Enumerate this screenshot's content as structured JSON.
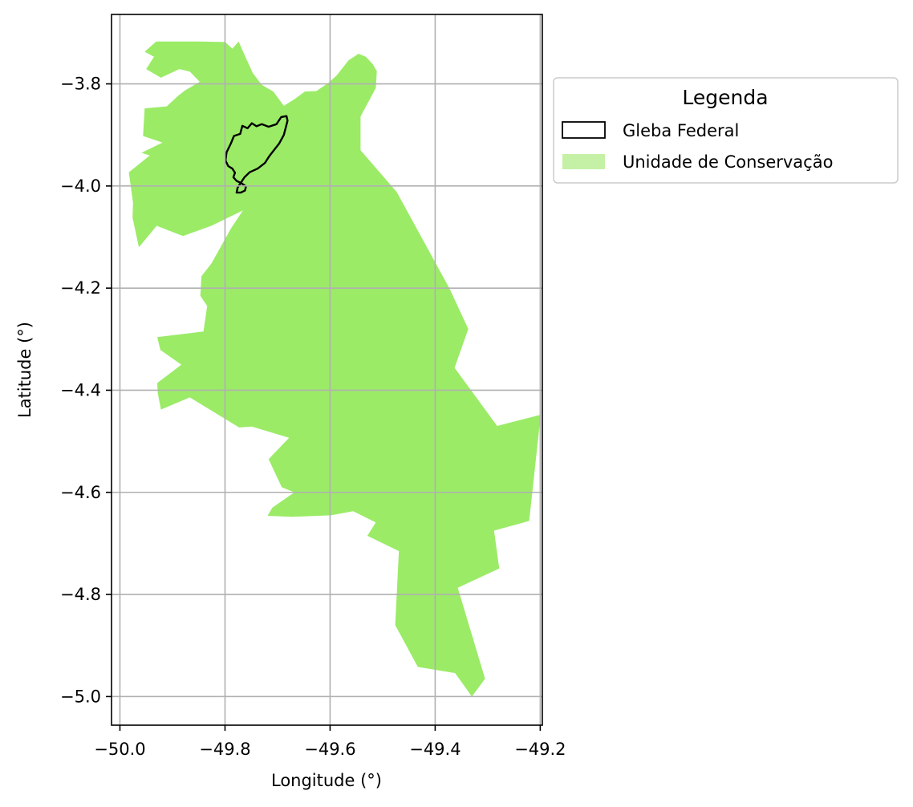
{
  "chart_data": {
    "type": "map",
    "xlabel": "Longitude (°)",
    "ylabel": "Latitude (°)",
    "xlim": [
      -50.016,
      -49.196
    ],
    "ylim": [
      -5.056,
      -3.664
    ],
    "x_ticks": [
      -50.0,
      -49.8,
      -49.6,
      -49.4,
      -49.2
    ],
    "x_tick_labels": [
      "−50.0",
      "−49.8",
      "−49.6",
      "−49.4",
      "−49.2"
    ],
    "y_ticks": [
      -5.0,
      -4.8,
      -4.6,
      -4.4,
      -4.2,
      -4.0,
      -3.8
    ],
    "y_tick_labels": [
      "−5.0",
      "−4.8",
      "−4.6",
      "−4.4",
      "−4.2",
      "−4.0",
      "−3.8"
    ],
    "grid": true,
    "legend": {
      "title": "Legenda",
      "placement": "outside-upper-right",
      "entries": [
        {
          "label": "Gleba Federal",
          "style": "outline",
          "color": "#000000"
        },
        {
          "label": "Unidade de Conservação",
          "style": "fill",
          "color": "#c5f1a6"
        }
      ]
    },
    "layers": [
      {
        "name": "Unidade de Conservação",
        "fill": "#9beb67",
        "polygon": [
          [
            -49.953,
            -3.737
          ],
          [
            -49.931,
            -3.717
          ],
          [
            -49.852,
            -3.717
          ],
          [
            -49.8,
            -3.718
          ],
          [
            -49.786,
            -3.731
          ],
          [
            -49.774,
            -3.717
          ],
          [
            -49.762,
            -3.745
          ],
          [
            -49.747,
            -3.779
          ],
          [
            -49.73,
            -3.802
          ],
          [
            -49.708,
            -3.815
          ],
          [
            -49.688,
            -3.843
          ],
          [
            -49.668,
            -3.83
          ],
          [
            -49.648,
            -3.815
          ],
          [
            -49.626,
            -3.814
          ],
          [
            -49.603,
            -3.798
          ],
          [
            -49.587,
            -3.783
          ],
          [
            -49.565,
            -3.754
          ],
          [
            -49.546,
            -3.741
          ],
          [
            -49.532,
            -3.747
          ],
          [
            -49.519,
            -3.761
          ],
          [
            -49.511,
            -3.775
          ],
          [
            -49.513,
            -3.808
          ],
          [
            -49.542,
            -3.864
          ],
          [
            -49.542,
            -3.93
          ],
          [
            -49.473,
            -4.012
          ],
          [
            -49.373,
            -4.2
          ],
          [
            -49.337,
            -4.28
          ],
          [
            -49.363,
            -4.356
          ],
          [
            -49.282,
            -4.47
          ],
          [
            -49.199,
            -4.448
          ],
          [
            -49.221,
            -4.656
          ],
          [
            -49.288,
            -4.675
          ],
          [
            -49.278,
            -4.749
          ],
          [
            -49.357,
            -4.787
          ],
          [
            -49.305,
            -4.965
          ],
          [
            -49.33,
            -5.0
          ],
          [
            -49.362,
            -4.954
          ],
          [
            -49.433,
            -4.942
          ],
          [
            -49.476,
            -4.86
          ],
          [
            -49.469,
            -4.715
          ],
          [
            -49.529,
            -4.685
          ],
          [
            -49.513,
            -4.659
          ],
          [
            -49.556,
            -4.637
          ],
          [
            -49.598,
            -4.645
          ],
          [
            -49.673,
            -4.648
          ],
          [
            -49.719,
            -4.646
          ],
          [
            -49.71,
            -4.63
          ],
          [
            -49.668,
            -4.6
          ],
          [
            -49.692,
            -4.59
          ],
          [
            -49.717,
            -4.535
          ],
          [
            -49.678,
            -4.493
          ],
          [
            -49.749,
            -4.471
          ],
          [
            -49.773,
            -4.473
          ],
          [
            -49.867,
            -4.414
          ],
          [
            -49.922,
            -4.438
          ],
          [
            -49.928,
            -4.405
          ],
          [
            -49.929,
            -4.386
          ],
          [
            -49.883,
            -4.35
          ],
          [
            -49.923,
            -4.321
          ],
          [
            -49.929,
            -4.296
          ],
          [
            -49.841,
            -4.285
          ],
          [
            -49.834,
            -4.235
          ],
          [
            -49.847,
            -4.215
          ],
          [
            -49.845,
            -4.177
          ],
          [
            -49.826,
            -4.152
          ],
          [
            -49.788,
            -4.082
          ],
          [
            -49.766,
            -4.048
          ],
          [
            -49.826,
            -4.078
          ],
          [
            -49.88,
            -4.098
          ],
          [
            -49.93,
            -4.078
          ],
          [
            -49.964,
            -4.12
          ],
          [
            -49.976,
            -4.062
          ],
          [
            -49.975,
            -4.033
          ],
          [
            -49.983,
            -3.973
          ],
          [
            -49.943,
            -3.94
          ],
          [
            -49.959,
            -3.935
          ],
          [
            -49.919,
            -3.915
          ],
          [
            -49.956,
            -3.902
          ],
          [
            -49.953,
            -3.848
          ],
          [
            -49.911,
            -3.844
          ],
          [
            -49.889,
            -3.823
          ],
          [
            -49.875,
            -3.812
          ],
          [
            -49.848,
            -3.796
          ],
          [
            -49.867,
            -3.776
          ],
          [
            -49.887,
            -3.771
          ],
          [
            -49.922,
            -3.788
          ],
          [
            -49.95,
            -3.771
          ],
          [
            -49.935,
            -3.747
          ]
        ]
      },
      {
        "name": "Gleba Federal",
        "stroke": "#000000",
        "outline": [
          [
            -49.797,
            -3.934
          ],
          [
            -49.789,
            -3.917
          ],
          [
            -49.783,
            -3.902
          ],
          [
            -49.771,
            -3.898
          ],
          [
            -49.767,
            -3.882
          ],
          [
            -49.757,
            -3.887
          ],
          [
            -49.749,
            -3.877
          ],
          [
            -49.74,
            -3.883
          ],
          [
            -49.73,
            -3.879
          ],
          [
            -49.717,
            -3.884
          ],
          [
            -49.702,
            -3.879
          ],
          [
            -49.693,
            -3.865
          ],
          [
            -49.683,
            -3.863
          ],
          [
            -49.681,
            -3.872
          ],
          [
            -49.688,
            -3.9
          ],
          [
            -49.697,
            -3.917
          ],
          [
            -49.707,
            -3.93
          ],
          [
            -49.716,
            -3.942
          ],
          [
            -49.724,
            -3.955
          ],
          [
            -49.738,
            -3.966
          ],
          [
            -49.753,
            -3.973
          ],
          [
            -49.763,
            -3.983
          ],
          [
            -49.776,
            -4.003
          ],
          [
            -49.778,
            -4.013
          ],
          [
            -49.77,
            -4.013
          ],
          [
            -49.762,
            -4.009
          ],
          [
            -49.76,
            -4.001
          ],
          [
            -49.768,
            -3.995
          ],
          [
            -49.778,
            -3.99
          ],
          [
            -49.784,
            -3.983
          ],
          [
            -49.781,
            -3.974
          ],
          [
            -49.786,
            -3.966
          ],
          [
            -49.794,
            -3.961
          ],
          [
            -49.799,
            -3.95
          ]
        ]
      }
    ]
  }
}
